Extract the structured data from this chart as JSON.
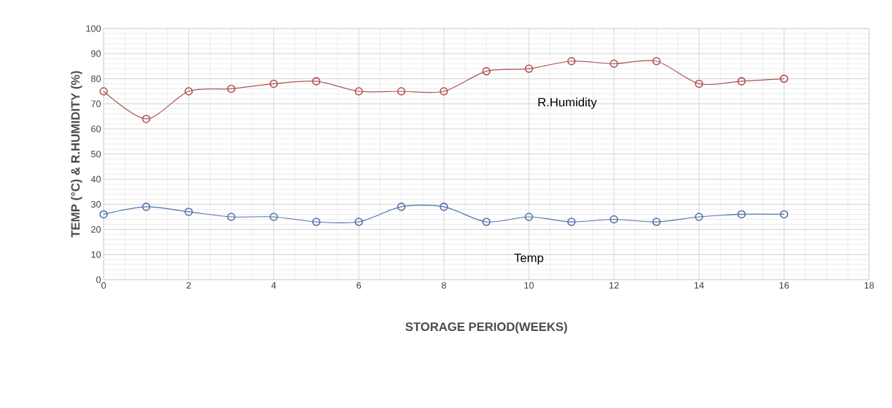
{
  "chart_data": {
    "type": "line",
    "xlabel": "STORAGE  PERIOD(WEEKS)",
    "ylabel": "TEMP (°C)  & R.HUMIDITY (%)",
    "x": [
      0,
      1,
      2,
      3,
      4,
      5,
      6,
      7,
      8,
      9,
      10,
      11,
      12,
      13,
      14,
      15,
      16
    ],
    "series": [
      {
        "name": "Temp",
        "color": "#4f72a6",
        "values": [
          26,
          29,
          27,
          25,
          25,
          23,
          23,
          29,
          29,
          23,
          25,
          23,
          24,
          23,
          25,
          26,
          26
        ]
      },
      {
        "name": "R.Humidity",
        "color": "#b05050",
        "values": [
          75,
          64,
          75,
          76,
          78,
          79,
          75,
          75,
          75,
          83,
          84,
          87,
          86,
          87,
          78,
          79,
          80
        ]
      }
    ],
    "xlim": [
      0,
      18
    ],
    "xticks": [
      0,
      2,
      4,
      6,
      8,
      10,
      12,
      14,
      16,
      18
    ],
    "ylim": [
      0,
      100
    ],
    "yticks": [
      0,
      10,
      20,
      30,
      40,
      50,
      60,
      70,
      80,
      90,
      100
    ],
    "grid": true,
    "marker": "circle",
    "line_style": "solid"
  }
}
